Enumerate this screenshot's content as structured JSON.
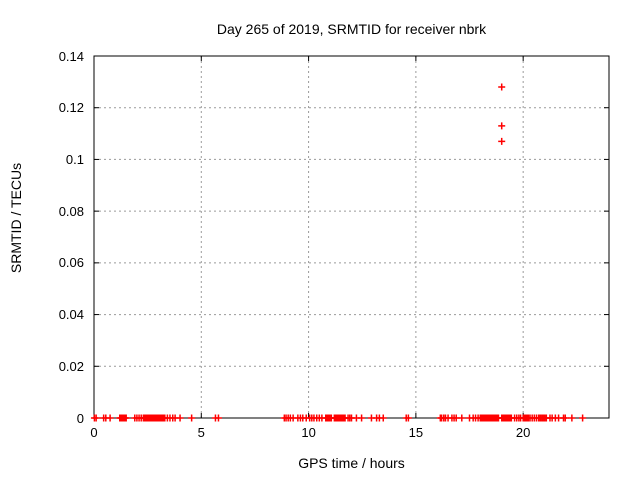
{
  "page": {
    "background": "#ffffff"
  },
  "chart_data": {
    "type": "scatter",
    "title": "Day 265 of 2019, SRMTID for receiver nbrk",
    "xlabel": "GPS time / hours",
    "ylabel": "SRMTID / TECUs",
    "xlim": [
      0,
      24
    ],
    "ylim": [
      0,
      0.14
    ],
    "xticks": {
      "values": [
        0,
        5,
        10,
        15,
        20
      ],
      "labels": [
        "0",
        "5",
        "10",
        "15",
        "20"
      ]
    },
    "yticks": {
      "values": [
        0,
        0.02,
        0.04,
        0.06,
        0.08,
        0.1,
        0.12,
        0.14
      ],
      "labels": [
        "0",
        "0.02",
        "0.04",
        "0.06",
        "0.08",
        "0.1",
        "0.12",
        "0.14"
      ]
    },
    "grid": true,
    "grid_style": "dashed",
    "legend_position": "none",
    "marker": {
      "shape": "plus",
      "color": "#ff0000",
      "size": 7,
      "stroke_width": 1.5
    },
    "axis_color": "#000000",
    "grid_color": "#9a9a9a",
    "series": [
      {
        "name": "srmtid",
        "baseline_y": 0,
        "baseline_x": [
          0.02,
          0.1,
          0.45,
          0.55,
          0.75,
          1.2,
          1.25,
          1.3,
          1.35,
          1.4,
          1.45,
          1.5,
          1.9,
          2.0,
          2.1,
          2.2,
          2.3,
          2.35,
          2.4,
          2.45,
          2.5,
          2.55,
          2.6,
          2.65,
          2.7,
          2.75,
          2.8,
          2.85,
          2.9,
          2.95,
          3.0,
          3.05,
          3.1,
          3.15,
          3.2,
          3.25,
          3.3,
          3.42,
          3.54,
          3.67,
          3.78,
          4.01,
          4.55,
          5.66,
          5.8,
          8.87,
          8.95,
          9.05,
          9.15,
          9.28,
          9.5,
          9.62,
          9.73,
          9.89,
          10.05,
          10.15,
          10.25,
          10.38,
          10.5,
          10.62,
          10.8,
          10.87,
          10.94,
          11.0,
          11.06,
          11.2,
          11.25,
          11.3,
          11.35,
          11.4,
          11.45,
          11.5,
          11.55,
          11.6,
          11.65,
          11.7,
          11.84,
          11.92,
          12.0,
          12.23,
          12.47,
          12.93,
          13.17,
          13.3,
          13.48,
          14.55,
          14.65,
          16.14,
          16.2,
          16.3,
          16.38,
          16.5,
          16.68,
          16.78,
          16.88,
          17.14,
          17.5,
          17.67,
          17.78,
          17.9,
          18.0,
          18.05,
          18.1,
          18.15,
          18.2,
          18.25,
          18.3,
          18.35,
          18.4,
          18.45,
          18.5,
          18.55,
          18.6,
          18.65,
          18.7,
          18.75,
          18.8,
          18.85,
          19.0,
          19.05,
          19.1,
          19.15,
          19.2,
          19.25,
          19.3,
          19.35,
          19.4,
          19.45,
          19.6,
          19.7,
          19.8,
          19.88,
          20.0,
          20.05,
          20.1,
          20.15,
          20.2,
          20.25,
          20.32,
          20.42,
          20.52,
          20.62,
          20.72,
          20.78,
          20.84,
          20.9,
          20.96,
          21.02,
          21.08,
          21.25,
          21.35,
          21.5,
          21.65,
          21.88,
          21.96,
          22.27,
          22.77
        ],
        "outliers": [
          {
            "x": 19.0,
            "y": 0.128
          },
          {
            "x": 19.0,
            "y": 0.113
          },
          {
            "x": 19.0,
            "y": 0.107
          }
        ]
      }
    ]
  }
}
